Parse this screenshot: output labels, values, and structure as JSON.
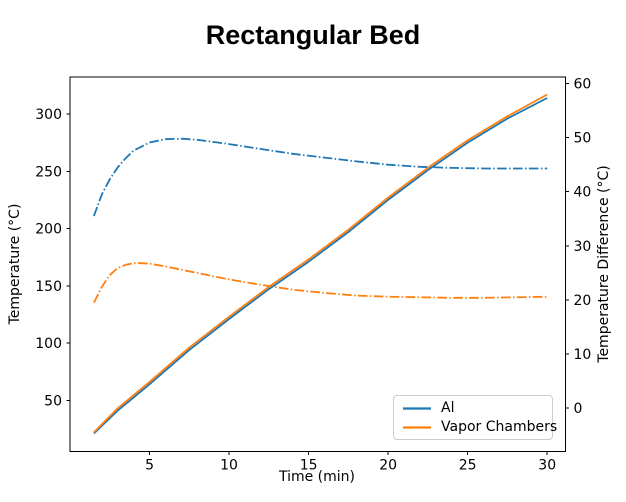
{
  "title": "Rectangular Bed",
  "axes": {
    "x": {
      "label": "Time (min)",
      "ticks": [
        5,
        10,
        15,
        20,
        25,
        30
      ],
      "range": [
        0,
        31.15
      ]
    },
    "y_left": {
      "label": "Temperature (°C)",
      "ticks": [
        50,
        100,
        150,
        200,
        250,
        300
      ],
      "range": [
        5.3,
        332.3
      ]
    },
    "y_right": {
      "label": "Temperature Difference (°C)",
      "ticks": [
        0,
        10,
        20,
        30,
        40,
        50,
        60
      ],
      "range": [
        -8.0,
        61.2
      ]
    }
  },
  "legend": {
    "position": "lower right",
    "items": [
      {
        "label": "Al",
        "color": "#1f77b4"
      },
      {
        "label": "Vapor Chambers",
        "color": "#ff7f0e"
      }
    ]
  },
  "colors": {
    "al": "#1f77b4",
    "vapor_chambers": "#ff7f0e",
    "spine": "#000000"
  },
  "chart_data": {
    "type": "line",
    "title": "Rectangular Bed",
    "xlabel": "Time (min)",
    "ylabel_left": "Temperature (°C)",
    "ylabel_right": "Temperature Difference (°C)",
    "xlim": [
      0,
      31.15
    ],
    "ylim_left": [
      5.3,
      332.3
    ],
    "ylim_right": [
      -8.0,
      61.2
    ],
    "grid": false,
    "legend_position": "lower right",
    "series": [
      {
        "name": "Al temperature",
        "legend": "Al",
        "axis": "left",
        "style": "solid",
        "color": "#1f77b4",
        "x": [
          1.5,
          3,
          5,
          7.5,
          10,
          12.5,
          15,
          17.5,
          20,
          22.5,
          25,
          27.5,
          30
        ],
        "y": [
          21,
          41,
          64,
          94,
          121,
          147,
          171,
          197,
          225,
          251,
          275,
          296,
          314
        ]
      },
      {
        "name": "Vapor Chambers temperature",
        "legend": "Vapor Chambers",
        "axis": "left",
        "style": "solid",
        "color": "#ff7f0e",
        "x": [
          1.5,
          3,
          5,
          7.5,
          10,
          12.5,
          15,
          17.5,
          20,
          22.5,
          25,
          27.5,
          30
        ],
        "y": [
          22,
          43,
          66,
          96,
          123,
          149,
          173,
          199,
          227,
          253,
          277,
          298,
          317
        ]
      },
      {
        "name": "Al temperature difference",
        "legend": "Al",
        "axis": "right",
        "style": "dashdot",
        "color": "#1f77b4",
        "x": [
          1.5,
          2,
          2.5,
          3,
          3.5,
          4,
          5,
          6,
          7,
          8,
          9,
          10,
          12,
          14,
          16,
          18,
          20,
          22,
          24,
          26,
          28,
          30
        ],
        "y": [
          35.5,
          39.5,
          42.3,
          44.5,
          46.2,
          47.6,
          49.1,
          49.7,
          49.8,
          49.6,
          49.2,
          48.8,
          47.9,
          47.0,
          46.3,
          45.6,
          45.0,
          44.6,
          44.4,
          44.3,
          44.3,
          44.3
        ]
      },
      {
        "name": "Vapor Chambers temperature difference",
        "legend": "Vapor Chambers",
        "axis": "right",
        "style": "dashdot",
        "color": "#ff7f0e",
        "x": [
          1.5,
          2,
          2.5,
          3,
          3.5,
          4,
          4.5,
          5,
          6,
          7,
          8,
          9,
          10,
          12,
          14,
          16,
          18,
          20,
          22,
          24,
          26,
          28,
          30
        ],
        "y": [
          19.5,
          22.4,
          24.6,
          25.9,
          26.5,
          26.8,
          26.8,
          26.7,
          26.2,
          25.6,
          25.0,
          24.4,
          23.8,
          22.8,
          21.9,
          21.3,
          20.8,
          20.6,
          20.5,
          20.4,
          20.4,
          20.5,
          20.6
        ]
      }
    ]
  }
}
